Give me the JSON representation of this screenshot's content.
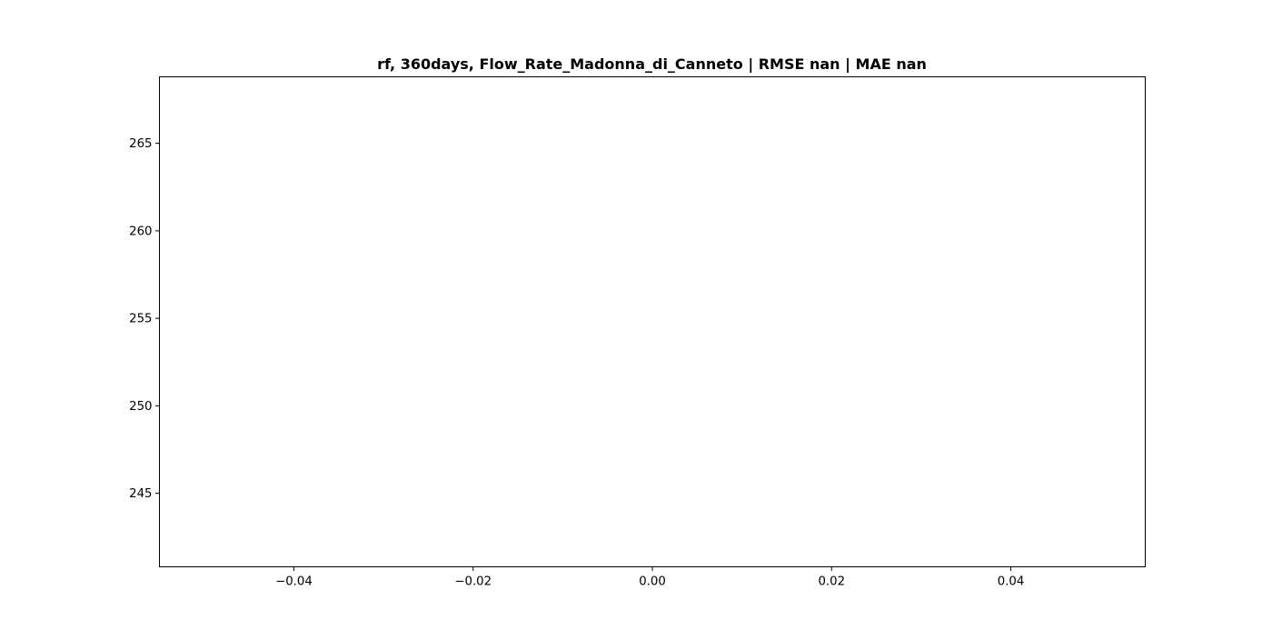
{
  "chart_data": {
    "type": "line",
    "title": "rf, 360days, Flow_Rate_Madonna_di_Canneto | RMSE nan | MAE nan",
    "xlabel": "",
    "ylabel": "",
    "xlim": [
      -0.055,
      0.055
    ],
    "ylim": [
      240.8,
      268.8
    ],
    "xticks": [
      -0.04,
      -0.02,
      0.0,
      0.02,
      0.04
    ],
    "xtick_labels": [
      "−0.04",
      "−0.02",
      "0.00",
      "0.02",
      "0.04"
    ],
    "yticks": [
      245,
      250,
      255,
      260,
      265
    ],
    "ytick_labels": [
      "245",
      "250",
      "255",
      "260",
      "265"
    ],
    "grid": false,
    "legend": "none",
    "series": [],
    "colors": {
      "axes": "#000000",
      "background": "#ffffff"
    }
  }
}
